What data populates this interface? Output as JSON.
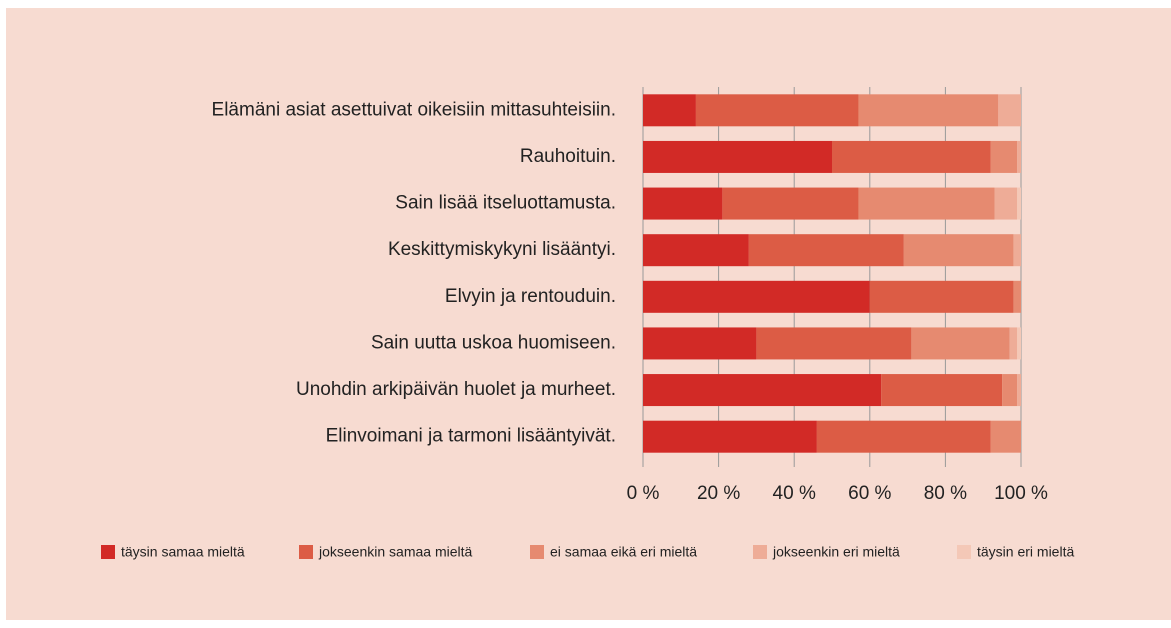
{
  "chart_data": {
    "type": "stacked-bar-horizontal",
    "categories": [
      "Elämäni asiat asettuivat oikeisiin mittasuhteisiin.",
      "Rauhoituin.",
      "Sain lisää itseluottamusta.",
      "Keskittymiskykyni lisääntyi.",
      "Elvyin ja rentouduin.",
      "Sain uutta uskoa huomiseen.",
      "Unohdin arkipäivän huolet ja murheet.",
      "Elinvoimani ja tarmoni lisääntyivät."
    ],
    "series": [
      {
        "name": "täysin samaa mieltä",
        "color": "#d22a26",
        "values": [
          14,
          50,
          21,
          28,
          60,
          30,
          63,
          46
        ]
      },
      {
        "name": "jokseenkin samaa mieltä",
        "color": "#dc5c45",
        "values": [
          43,
          42,
          36,
          41,
          38,
          41,
          32,
          46
        ]
      },
      {
        "name": "ei samaa eikä eri mieltä",
        "color": "#e68a70",
        "values": [
          37,
          7,
          36,
          29,
          2,
          26,
          4,
          8
        ]
      },
      {
        "name": "jokseenkin eri mieltä",
        "color": "#eeac97",
        "values": [
          6,
          1,
          6,
          2,
          0,
          2,
          1,
          0
        ]
      },
      {
        "name": "täysin eri mieltä",
        "color": "#f4c8b7",
        "values": [
          0,
          0,
          1,
          0,
          0,
          1,
          0,
          0
        ]
      }
    ],
    "xlim": [
      0,
      100
    ],
    "xticks": [
      {
        "value": 0,
        "label": "0 %"
      },
      {
        "value": 20,
        "label": "20 %"
      },
      {
        "value": 40,
        "label": "40 %"
      },
      {
        "value": 60,
        "label": "60 %"
      },
      {
        "value": 80,
        "label": "80 %"
      },
      {
        "value": 100,
        "label": "100 %"
      }
    ],
    "grid": true,
    "legend": "bottom"
  }
}
